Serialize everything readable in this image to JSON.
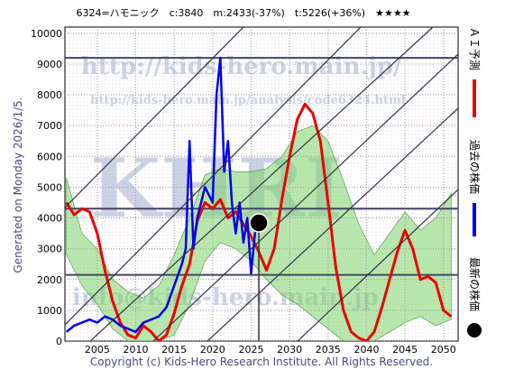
{
  "chart_data": {
    "type": "line",
    "title": "6324=ハモニック　c:3840　m:2433(-37%)　t:5226(+36%)　★★★★",
    "side_note": "Generated on Monday 2026/1/5.",
    "footer": "Copyright (c) Kids-Hero Research Institute. All Rights Reserved.",
    "watermarks": [
      "http://kids-hero.main.jp/",
      "http://kids-hero.main.jp/analysis/code6324.html",
      "KHRI",
      "info@kids-hero.main.jp"
    ],
    "xlim": [
      2000.8,
      2051.9
    ],
    "ylim": [
      0,
      10200
    ],
    "xticks": [
      2005,
      2010,
      2015,
      2020,
      2025,
      2030,
      2035,
      2040,
      2045,
      2050
    ],
    "yticks": [
      0,
      1000,
      2000,
      3000,
      4000,
      5000,
      6000,
      7000,
      8000,
      9000,
      10000
    ],
    "grid": true,
    "hlines": [
      9200,
      4300,
      2150
    ],
    "band": {
      "color": "#7ed36a",
      "x": [
        2001,
        2003,
        2005,
        2007,
        2009,
        2011,
        2013,
        2015,
        2017,
        2019,
        2021,
        2023,
        2025,
        2027,
        2029,
        2031,
        2033,
        2035,
        2037,
        2039,
        2041,
        2043,
        2045,
        2047,
        2049,
        2051
      ],
      "upper": [
        5300,
        3500,
        3000,
        2000,
        1600,
        1400,
        1800,
        2800,
        4000,
        5400,
        5600,
        5500,
        5500,
        5600,
        6000,
        6800,
        7000,
        6500,
        5200,
        3800,
        2800,
        3500,
        4200,
        3600,
        4000,
        4800
      ],
      "lower": [
        2800,
        1800,
        1200,
        400,
        0,
        0,
        0,
        200,
        1200,
        2600,
        3200,
        3000,
        2600,
        2000,
        1500,
        1200,
        800,
        400,
        0,
        0,
        0,
        300,
        600,
        800,
        500,
        700
      ]
    },
    "series": [
      {
        "name": "ＡＩ予測",
        "color": "#ee0000",
        "x": [
          2001,
          2002,
          2003,
          2004,
          2005,
          2006,
          2007,
          2008,
          2009,
          2010,
          2011,
          2012,
          2013,
          2014,
          2015,
          2016,
          2017,
          2018,
          2019,
          2020,
          2021,
          2022,
          2023,
          2024,
          2025,
          2026,
          2027,
          2028,
          2029,
          2030,
          2031,
          2032,
          2033,
          2034,
          2035,
          2036,
          2037,
          2038,
          2039,
          2040,
          2041,
          2042,
          2043,
          2044,
          2045,
          2046,
          2047,
          2048,
          2049,
          2050,
          2051
        ],
        "values": [
          4500,
          4100,
          4300,
          4200,
          3500,
          2300,
          1300,
          600,
          200,
          100,
          500,
          300,
          0,
          200,
          900,
          1800,
          2500,
          3900,
          4500,
          4300,
          4600,
          4000,
          4200,
          3800,
          3400,
          2900,
          2300,
          3000,
          4600,
          6000,
          7200,
          7700,
          7400,
          6500,
          4500,
          2400,
          1000,
          300,
          100,
          0,
          300,
          1100,
          2000,
          2900,
          3600,
          3000,
          2000,
          2100,
          1900,
          1000,
          800
        ]
      },
      {
        "name": "過去の株価",
        "color": "#0000ee",
        "x": [
          2001,
          2002,
          2003,
          2004,
          2005,
          2006,
          2007,
          2008,
          2009,
          2010,
          2011,
          2012,
          2013,
          2014,
          2015,
          2016,
          2016.5,
          2017,
          2017.5,
          2018,
          2019,
          2020,
          2020.5,
          2021,
          2021.5,
          2022,
          2022.5,
          2023,
          2023.5,
          2024,
          2024.5,
          2025,
          2025.5,
          2026
        ],
        "values": [
          300,
          500,
          600,
          700,
          600,
          800,
          700,
          500,
          400,
          300,
          600,
          700,
          800,
          1100,
          1800,
          2500,
          3000,
          6500,
          3000,
          4000,
          5000,
          4500,
          8000,
          9200,
          5500,
          6500,
          4500,
          3500,
          4500,
          3200,
          4000,
          2200,
          3500,
          3840
        ]
      },
      {
        "name": "最新の株価",
        "color": "#000000",
        "x": [
          2026
        ],
        "values": [
          3840
        ]
      }
    ]
  }
}
